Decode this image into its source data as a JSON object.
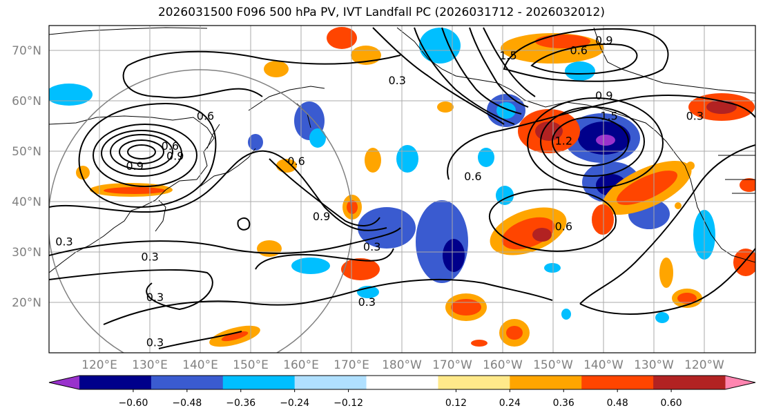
{
  "title": "2026031500 F096 500 hPa PV, IVT Landfall PC (2026031712 - 2026032012)",
  "lat_labels": [
    "70°N",
    "60°N",
    "50°N",
    "40°N",
    "30°N",
    "20°N"
  ],
  "lat_values": [
    70,
    60,
    50,
    40,
    30,
    20
  ],
  "lon_labels": [
    "120°E",
    "130°E",
    "140°E",
    "150°E",
    "160°E",
    "170°E",
    "180°W",
    "170°W",
    "160°W",
    "150°W",
    "140°W",
    "130°W",
    "120°W"
  ],
  "lon_values": [
    120,
    130,
    140,
    150,
    160,
    170,
    180,
    190,
    200,
    210,
    220,
    230,
    240
  ],
  "map_extent": {
    "lon_min": 108,
    "lon_max": 248,
    "lat_min": 10,
    "lat_max": 75
  },
  "colorbar": {
    "colors": [
      "#9932cc",
      "#00008b",
      "#3a5bd0",
      "#00bfff",
      "#b0e0ff",
      "#ffffff",
      "#ffe98a",
      "#ffa500",
      "#ff4500",
      "#b22222",
      "#ff85b0"
    ],
    "tick_labels": [
      "−0.60",
      "−0.48",
      "−0.36",
      "−0.24",
      "−0.12",
      "0.12",
      "0.24",
      "0.36",
      "0.48",
      "0.60"
    ],
    "tick_values": [
      -0.6,
      -0.48,
      -0.36,
      -0.24,
      -0.12,
      0.12,
      0.24,
      0.36,
      0.48,
      0.6
    ]
  },
  "contour_labels": [
    {
      "text": "0.3",
      "lon": 128,
      "lat": 29
    },
    {
      "text": "0.3",
      "lon": 129,
      "lat": 21
    },
    {
      "text": "0.3",
      "lon": 129,
      "lat": 12
    },
    {
      "text": "0.3",
      "lon": 111,
      "lat": 32
    },
    {
      "text": "0.3",
      "lon": 172,
      "lat": 31
    },
    {
      "text": "0.3",
      "lon": 171,
      "lat": 20
    },
    {
      "text": "0.3",
      "lon": 177,
      "lat": 64
    },
    {
      "text": "0.3",
      "lon": 236,
      "lat": 57
    },
    {
      "text": "0.6",
      "lon": 139,
      "lat": 57
    },
    {
      "text": "0.6",
      "lon": 132,
      "lat": 51
    },
    {
      "text": "0.6",
      "lon": 157,
      "lat": 48
    },
    {
      "text": "0.6",
      "lon": 192,
      "lat": 45
    },
    {
      "text": "0.6",
      "lon": 210,
      "lat": 35
    },
    {
      "text": "0.6",
      "lon": 213,
      "lat": 70
    },
    {
      "text": "0.9",
      "lon": 125,
      "lat": 47
    },
    {
      "text": "0.9",
      "lon": 133,
      "lat": 49
    },
    {
      "text": "0.9",
      "lon": 162,
      "lat": 37
    },
    {
      "text": "0.9",
      "lon": 218,
      "lat": 72
    },
    {
      "text": "0.9",
      "lon": 218,
      "lat": 61
    },
    {
      "text": "1.2",
      "lon": 210,
      "lat": 52
    },
    {
      "text": "1.5",
      "lon": 199,
      "lat": 69
    },
    {
      "text": "1.5",
      "lon": 219,
      "lat": 57
    }
  ]
}
